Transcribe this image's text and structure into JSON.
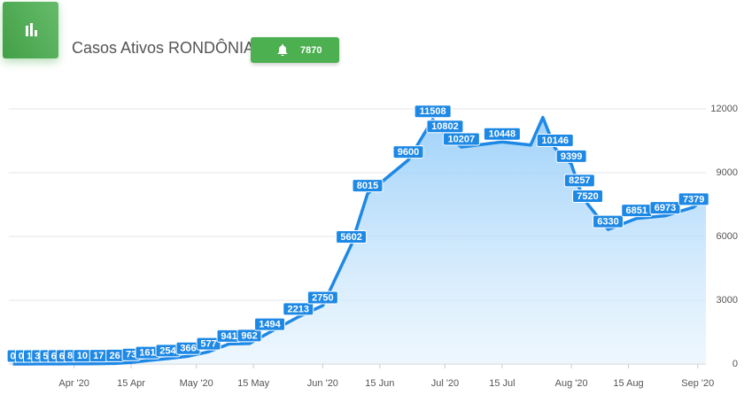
{
  "header": {
    "title": "Casos Ativos RONDÔNIA",
    "badge": "7870"
  },
  "chart_data": {
    "type": "area",
    "x": [
      "2020-03-17",
      "2020-03-19",
      "2020-03-21",
      "2020-03-23",
      "2020-03-25",
      "2020-03-27",
      "2020-03-29",
      "2020-03-31",
      "2020-04-03",
      "2020-04-07",
      "2020-04-11",
      "2020-04-15",
      "2020-04-19",
      "2020-04-24",
      "2020-04-29",
      "2020-05-04",
      "2020-05-09",
      "2020-05-14",
      "2020-05-19",
      "2020-05-26",
      "2020-06-01",
      "2020-06-08",
      "2020-06-12",
      "2020-06-22",
      "2020-06-28",
      "2020-07-01",
      "2020-07-05",
      "2020-07-15",
      "2020-07-22",
      "2020-07-25",
      "2020-07-28",
      "2020-08-01",
      "2020-08-03",
      "2020-08-05",
      "2020-08-10",
      "2020-08-17",
      "2020-08-24",
      "2020-08-31",
      "2020-09-03"
    ],
    "values": [
      0,
      0,
      1,
      3,
      5,
      6,
      6,
      8,
      10,
      17,
      26,
      73,
      161,
      254,
      366,
      577,
      941,
      962,
      1494,
      2213,
      2750,
      5602,
      8015,
      9600,
      11508,
      10802,
      10207,
      10448,
      10300,
      11600,
      10146,
      9399,
      8257,
      7520,
      6330,
      6851,
      6973,
      7379,
      7870
    ],
    "value_labels": [
      "0",
      "0",
      "1",
      "3",
      "5",
      "6",
      "6",
      "8",
      "10",
      "17",
      "26",
      "73",
      "161",
      "254",
      "366",
      "577",
      "941",
      "962",
      "1494",
      "2213",
      "2750",
      "5602",
      "8015",
      "9600",
      "11508",
      "10802",
      "10207",
      "10448",
      null,
      null,
      "10146",
      "9399",
      "8257",
      "7520",
      "6330",
      "6851",
      "6973",
      "7379",
      null
    ],
    "color": "#1e88e5",
    "xlim": [
      "2020-03-16",
      "2020-09-03"
    ],
    "xticks": [
      {
        "value": "2020-04-01",
        "label": "Apr '20"
      },
      {
        "value": "2020-04-15",
        "label": "15 Apr"
      },
      {
        "value": "2020-05-01",
        "label": "May '20"
      },
      {
        "value": "2020-05-15",
        "label": "15 May"
      },
      {
        "value": "2020-06-01",
        "label": "Jun '20"
      },
      {
        "value": "2020-06-15",
        "label": "15 Jun"
      },
      {
        "value": "2020-07-01",
        "label": "Jul '20"
      },
      {
        "value": "2020-07-15",
        "label": "15 Jul"
      },
      {
        "value": "2020-08-01",
        "label": "Aug '20"
      },
      {
        "value": "2020-08-15",
        "label": "15 Aug"
      },
      {
        "value": "2020-09-01",
        "label": "Sep '20"
      }
    ],
    "ylim": [
      0,
      12000
    ],
    "yticks": [
      0,
      3000,
      6000,
      9000,
      12000
    ],
    "grid": true
  }
}
